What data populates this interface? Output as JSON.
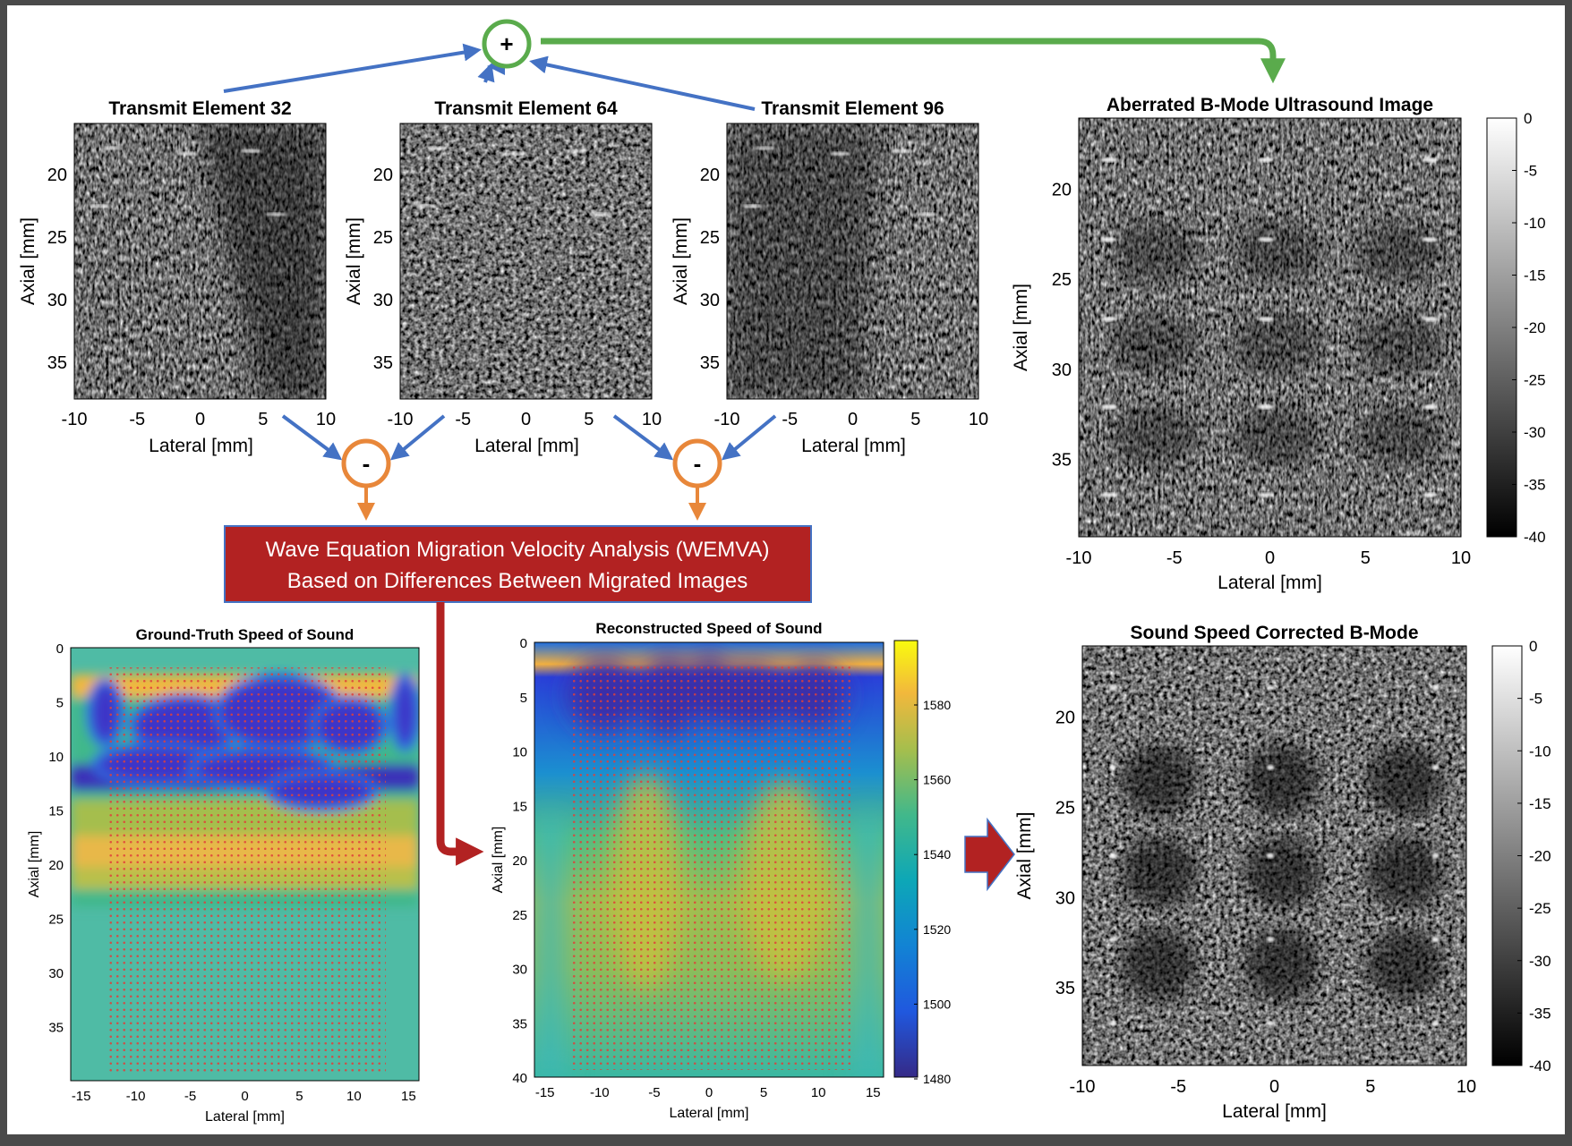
{
  "colors": {
    "background": "#ffffff",
    "frame": "#4a4a4a",
    "blue_arrow": "#4472c4",
    "green": "#5aab4c",
    "orange": "#e8873a",
    "dark_red": "#b22222"
  },
  "sum_node": {
    "symbol": "+"
  },
  "diff_nodes": [
    {
      "symbol": "-"
    },
    {
      "symbol": "-"
    }
  ],
  "transmit_panels": [
    {
      "title": "Transmit Element 32",
      "shadow": "left"
    },
    {
      "title": "Transmit Element 64",
      "shadow": "none"
    },
    {
      "title": "Transmit Element 96",
      "shadow": "right"
    }
  ],
  "transmit_axes": {
    "xlabel": "Lateral [mm]",
    "ylabel": "Axial [mm]",
    "x_ticks": [
      "-10",
      "-5",
      "0",
      "5",
      "10"
    ],
    "y_ticks": [
      "20",
      "25",
      "30",
      "35"
    ]
  },
  "wemva_box": {
    "line1": "Wave Equation Migration Velocity Analysis (WEMVA)",
    "line2": "Based on Differences Between Migrated Images"
  },
  "aberrated_panel": {
    "title": "Aberrated B-Mode Ultrasound Image",
    "xlabel": "Lateral [mm]",
    "ylabel": "Axial [mm]",
    "x_ticks": [
      "-10",
      "-5",
      "0",
      "5",
      "10"
    ],
    "y_ticks": [
      "20",
      "25",
      "30",
      "35"
    ],
    "colorbar_ticks": [
      "0",
      "-5",
      "-10",
      "-15",
      "-20",
      "-25",
      "-30",
      "-35",
      "-40"
    ]
  },
  "corrected_panel": {
    "title": "Sound Speed Corrected B-Mode",
    "xlabel": "Lateral [mm]",
    "ylabel": "Axial [mm]",
    "x_ticks": [
      "-10",
      "-5",
      "0",
      "5",
      "10"
    ],
    "y_ticks": [
      "20",
      "25",
      "30",
      "35"
    ],
    "colorbar_ticks": [
      "0",
      "-5",
      "-10",
      "-15",
      "-20",
      "-25",
      "-30",
      "-35",
      "-40"
    ]
  },
  "ground_truth_panel": {
    "title": "Ground-Truth Speed of Sound",
    "xlabel": "Lateral [mm]",
    "ylabel": "Axial [mm]",
    "x_ticks": [
      "-15",
      "-10",
      "-5",
      "0",
      "5",
      "10",
      "15"
    ],
    "y_ticks": [
      "0",
      "5",
      "10",
      "15",
      "20",
      "25",
      "30",
      "35"
    ]
  },
  "reconstructed_panel": {
    "title": "Reconstructed Speed of Sound",
    "xlabel": "Lateral [mm]",
    "ylabel": "Axial [mm]",
    "x_ticks": [
      "-15",
      "-10",
      "-5",
      "0",
      "5",
      "10",
      "15"
    ],
    "y_ticks": [
      "0",
      "5",
      "10",
      "15",
      "20",
      "25",
      "30",
      "35",
      "40"
    ],
    "colorbar_ticks": [
      "1580",
      "1560",
      "1540",
      "1520",
      "1500",
      "1480"
    ]
  }
}
